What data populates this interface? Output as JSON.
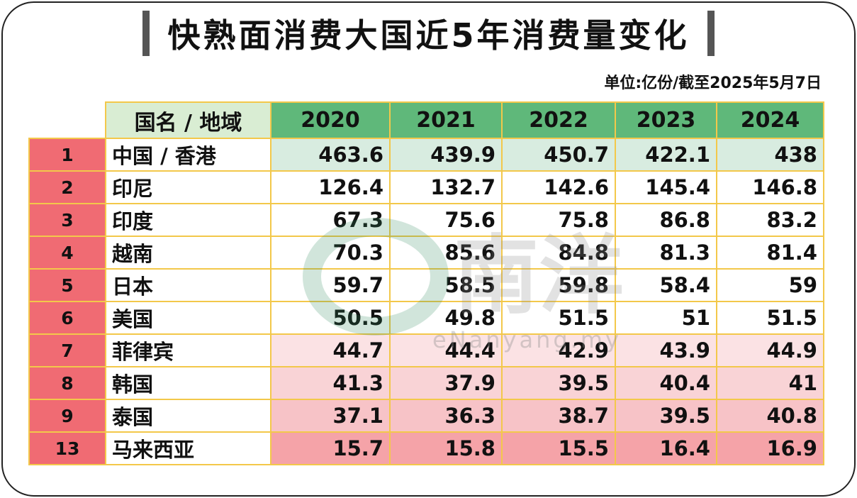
{
  "title": "快熟面消费大国近5年消费量变化",
  "unit_note": "单位:亿份/截至2025年5月7日",
  "watermark": {
    "text": "eNanyang.my",
    "logo_chars": "南洋"
  },
  "colors": {
    "header_green": "#5fb87a",
    "name_header_green": "#d9edd3",
    "rank_red": "#f06b73",
    "top_row_green": "#d8ece0",
    "low_pink": "#f5a3a8",
    "mid_white": "#ffffff",
    "grid_border": "#f3c84a"
  },
  "chart_data": {
    "type": "table",
    "title": "快熟面消费大国近5年消费量变化",
    "unit": "单位:亿份/截至2025年5月7日",
    "columns": [
      "",
      "国名 / 地域",
      "2020",
      "2021",
      "2022",
      "2023",
      "2024"
    ],
    "rows": [
      {
        "rank": "1",
        "name": "中国 / 香港",
        "values": [
          "463.6",
          "439.9",
          "450.7",
          "422.1",
          "438"
        ],
        "shade": "green"
      },
      {
        "rank": "2",
        "name": "印尼",
        "values": [
          "126.4",
          "132.7",
          "142.6",
          "145.4",
          "146.8"
        ],
        "shade": "white"
      },
      {
        "rank": "3",
        "name": "印度",
        "values": [
          "67.3",
          "75.6",
          "75.8",
          "86.8",
          "83.2"
        ],
        "shade": "white"
      },
      {
        "rank": "4",
        "name": "越南",
        "values": [
          "70.3",
          "85.6",
          "84.8",
          "81.3",
          "81.4"
        ],
        "shade": "white"
      },
      {
        "rank": "5",
        "name": "日本",
        "values": [
          "59.7",
          "58.5",
          "59.8",
          "58.4",
          "59"
        ],
        "shade": "white"
      },
      {
        "rank": "6",
        "name": "美国",
        "values": [
          "50.5",
          "49.8",
          "51.5",
          "51",
          "51.5"
        ],
        "shade": "white"
      },
      {
        "rank": "7",
        "name": "菲律宾",
        "values": [
          "44.7",
          "44.4",
          "42.9",
          "43.9",
          "44.9"
        ],
        "shade": "pink1"
      },
      {
        "rank": "8",
        "name": "韩国",
        "values": [
          "41.3",
          "37.9",
          "39.5",
          "40.4",
          "41"
        ],
        "shade": "pink2"
      },
      {
        "rank": "9",
        "name": "泰国",
        "values": [
          "37.1",
          "36.3",
          "38.7",
          "39.5",
          "40.8"
        ],
        "shade": "pink3"
      },
      {
        "rank": "13",
        "name": "马来西亚",
        "values": [
          "15.7",
          "15.8",
          "15.5",
          "16.4",
          "16.9"
        ],
        "shade": "pink4"
      }
    ]
  }
}
